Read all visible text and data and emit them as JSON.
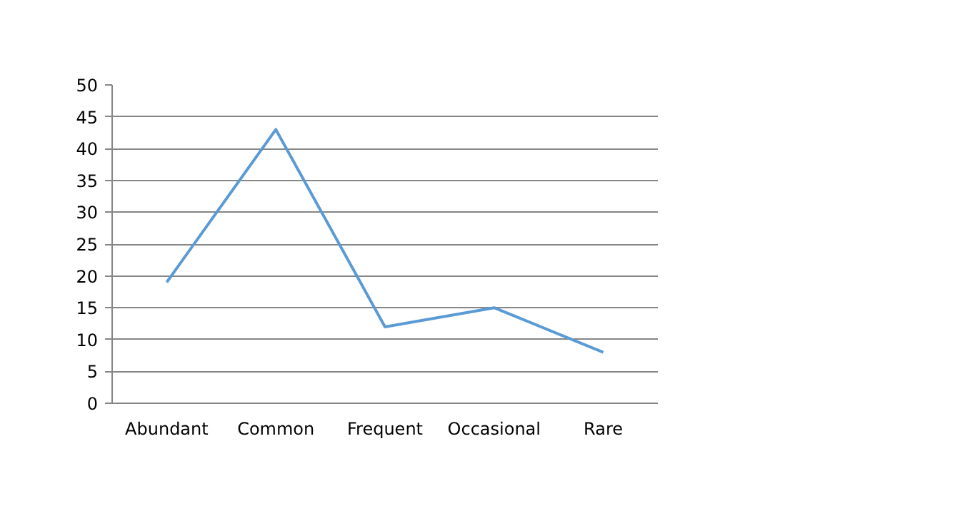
{
  "chart_data": {
    "type": "line",
    "categories": [
      "Abundant",
      "Common",
      "Frequent",
      "Occasional",
      "Rare"
    ],
    "values": [
      19,
      43,
      12,
      15,
      8
    ],
    "color": "#5b9bd5",
    "ylim": [
      0,
      50
    ],
    "yticks": [
      0,
      5,
      10,
      15,
      20,
      25,
      30,
      35,
      40,
      45,
      50
    ],
    "grid": "y",
    "marker": "none",
    "line_style": "solid"
  }
}
